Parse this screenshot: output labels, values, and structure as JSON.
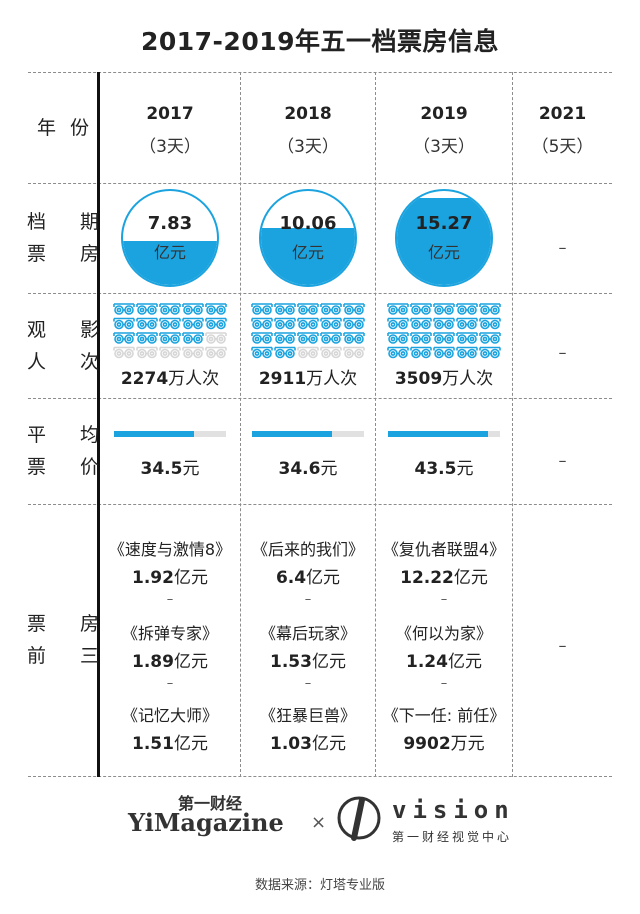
{
  "title": "2017-2019年五一档票房信息",
  "row_labels": {
    "year": [
      "年",
      "份"
    ],
    "box_office": [
      "档 期",
      "票 房"
    ],
    "admissions": [
      "观 影",
      "人 次"
    ],
    "avg_price": [
      "平 均",
      "票 价"
    ],
    "top3": [
      "票 房",
      "前 三"
    ]
  },
  "columns": [
    {
      "year": "2017",
      "days": "（3天）",
      "box_value": "7.83",
      "box_unit": "亿元",
      "admissions_num": "2274",
      "admissions_unit": "万人次",
      "price_num": "34.5",
      "price_unit": "元",
      "top3": [
        {
          "title": "《速度与激情8》",
          "gross_num": "1.92",
          "gross_unit": "亿元"
        },
        {
          "title": "《拆弹专家》",
          "gross_num": "1.89",
          "gross_unit": "亿元"
        },
        {
          "title": "《记忆大师》",
          "gross_num": "1.51",
          "gross_unit": "亿元"
        }
      ]
    },
    {
      "year": "2018",
      "days": "（3天）",
      "box_value": "10.06",
      "box_unit": "亿元",
      "admissions_num": "2911",
      "admissions_unit": "万人次",
      "price_num": "34.6",
      "price_unit": "元",
      "top3": [
        {
          "title": "《后来的我们》",
          "gross_num": "6.4",
          "gross_unit": "亿元"
        },
        {
          "title": "《幕后玩家》",
          "gross_num": "1.53",
          "gross_unit": "亿元"
        },
        {
          "title": "《狂暴巨兽》",
          "gross_num": "1.03",
          "gross_unit": "亿元"
        }
      ]
    },
    {
      "year": "2019",
      "days": "（3天）",
      "box_value": "15.27",
      "box_unit": "亿元",
      "admissions_num": "3509",
      "admissions_unit": "万人次",
      "price_num": "43.5",
      "price_unit": "元",
      "top3": [
        {
          "title": "《复仇者联盟4》",
          "gross_num": "12.22",
          "gross_unit": "亿元"
        },
        {
          "title": "《何以为家》",
          "gross_num": "1.24",
          "gross_unit": "亿元"
        },
        {
          "title": "《下一任: 前任》",
          "gross_num": "9902",
          "gross_unit": "万元"
        }
      ]
    },
    {
      "year": "2021",
      "days": "（5天）",
      "empty_mark": "–"
    }
  ],
  "separator": "–",
  "chart_data": {
    "type": "table",
    "title": "2017-2019年五一档票房信息",
    "categories": [
      "2017",
      "2018",
      "2019",
      "2021"
    ],
    "series": [
      {
        "name": "档期票房",
        "unit": "亿元",
        "values": [
          7.83,
          10.06,
          15.27,
          null
        ]
      },
      {
        "name": "观影人次",
        "unit": "万人次",
        "values": [
          2274,
          2911,
          3509,
          null
        ]
      },
      {
        "name": "平均票价",
        "unit": "元",
        "values": [
          34.5,
          34.6,
          43.5,
          null
        ]
      }
    ],
    "box_office_fill_fraction": [
      0.47,
      0.61,
      0.93,
      null
    ],
    "admission_icons_filled_of_20": [
      14,
      17,
      20,
      null
    ],
    "avg_price_bar_fraction": [
      0.71,
      0.71,
      0.89,
      null
    ],
    "accent_color": "#1aa3df",
    "track_color": "#e1e1e1",
    "icon_name": "3d-glasses-icon"
  },
  "footer": {
    "brand_cn": "第一财经",
    "brand_en": "YiMagazine",
    "times": "×",
    "vision": "vision",
    "vision_sub": "第一财经视觉中心",
    "source": "数据来源：灯塔专业版"
  }
}
